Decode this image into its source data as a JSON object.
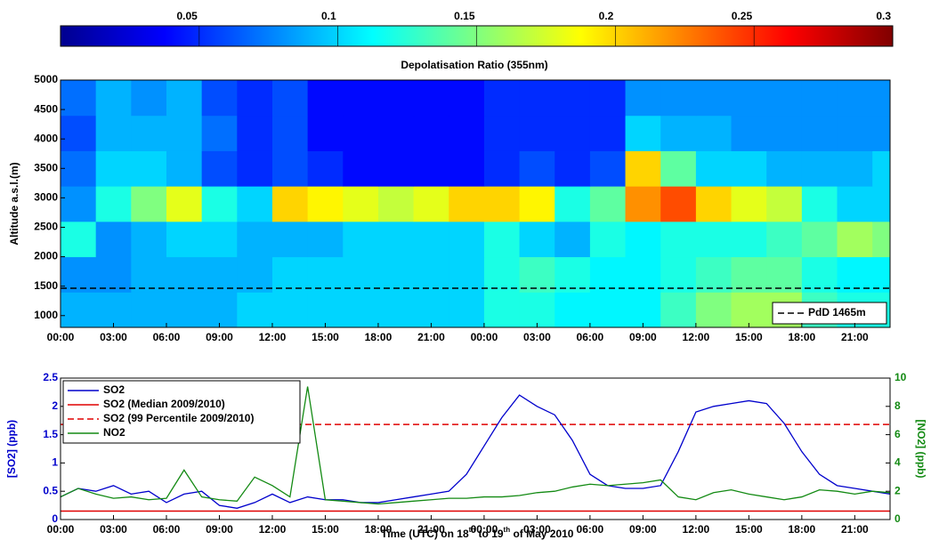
{
  "chart_data": [
    {
      "type": "heatmap",
      "title": "Depolatisation Ratio (355nm)",
      "ylabel": "Altitude a.s.l.(m)",
      "colormap": "jet",
      "colorbar": {
        "lim": [
          0,
          0.3
        ],
        "ticks": [
          0.05,
          0.1,
          0.15,
          0.2,
          0.25,
          0.3
        ]
      },
      "xlim": [
        0,
        47
      ],
      "xticks": [
        {
          "value": 0,
          "label": "00:00"
        },
        {
          "value": 3,
          "label": "03:00"
        },
        {
          "value": 6,
          "label": "06:00"
        },
        {
          "value": 9,
          "label": "09:00"
        },
        {
          "value": 12,
          "label": "12:00"
        },
        {
          "value": 15,
          "label": "15:00"
        },
        {
          "value": 18,
          "label": "18:00"
        },
        {
          "value": 21,
          "label": "21:00"
        },
        {
          "value": 24,
          "label": "00:00"
        },
        {
          "value": 27,
          "label": "03:00"
        },
        {
          "value": 30,
          "label": "06:00"
        },
        {
          "value": 33,
          "label": "09:00"
        },
        {
          "value": 36,
          "label": "12:00"
        },
        {
          "value": 39,
          "label": "15:00"
        },
        {
          "value": 42,
          "label": "18:00"
        },
        {
          "value": 45,
          "label": "21:00"
        }
      ],
      "ylim": [
        800,
        5000
      ],
      "yticks": [
        1000,
        1500,
        2000,
        2500,
        3000,
        3500,
        4000,
        4500,
        5000
      ],
      "x_edges": [
        0,
        2,
        4,
        6,
        8,
        10,
        12,
        14,
        16,
        18,
        20,
        22,
        24,
        26,
        28,
        30,
        32,
        34,
        36,
        38,
        40,
        42,
        44,
        46,
        47
      ],
      "y_edges": [
        800,
        1400,
        2000,
        2600,
        3200,
        3800,
        4400,
        5000
      ],
      "values": [
        [
          0.09,
          0.09,
          0.09,
          0.09,
          0.09,
          0.1,
          0.1,
          0.1,
          0.1,
          0.1,
          0.1,
          0.1,
          0.12,
          0.12,
          0.11,
          0.11,
          0.11,
          0.13,
          0.15,
          0.16,
          0.16,
          0.13,
          0.12,
          0.12
        ],
        [
          0.08,
          0.08,
          0.09,
          0.09,
          0.09,
          0.09,
          0.1,
          0.1,
          0.1,
          0.1,
          0.1,
          0.1,
          0.12,
          0.13,
          0.12,
          0.11,
          0.11,
          0.12,
          0.13,
          0.14,
          0.14,
          0.12,
          0.11,
          0.11
        ],
        [
          0.12,
          0.08,
          0.09,
          0.1,
          0.1,
          0.09,
          0.09,
          0.09,
          0.1,
          0.1,
          0.1,
          0.1,
          0.12,
          0.1,
          0.09,
          0.12,
          0.11,
          0.12,
          0.12,
          0.12,
          0.13,
          0.14,
          0.16,
          0.15
        ],
        [
          0.08,
          0.12,
          0.15,
          0.18,
          0.12,
          0.1,
          0.2,
          0.19,
          0.18,
          0.17,
          0.18,
          0.2,
          0.2,
          0.19,
          0.12,
          0.14,
          0.22,
          0.24,
          0.2,
          0.18,
          0.17,
          0.12,
          0.1,
          0.1
        ],
        [
          0.07,
          0.1,
          0.1,
          0.09,
          0.06,
          0.05,
          0.06,
          0.05,
          0.04,
          0.04,
          0.04,
          0.04,
          0.05,
          0.06,
          0.05,
          0.06,
          0.2,
          0.14,
          0.1,
          0.1,
          0.09,
          0.09,
          0.09,
          0.1
        ],
        [
          0.06,
          0.09,
          0.09,
          0.09,
          0.07,
          0.05,
          0.06,
          0.04,
          0.04,
          0.04,
          0.04,
          0.04,
          0.05,
          0.05,
          0.05,
          0.05,
          0.1,
          0.09,
          0.09,
          0.08,
          0.08,
          0.08,
          0.08,
          0.08
        ],
        [
          0.07,
          0.09,
          0.08,
          0.09,
          0.06,
          0.05,
          0.06,
          0.04,
          0.04,
          0.04,
          0.04,
          0.04,
          0.05,
          0.05,
          0.05,
          0.05,
          0.08,
          0.08,
          0.08,
          0.08,
          0.08,
          0.08,
          0.08,
          0.08
        ]
      ],
      "reference_lines": [
        {
          "name": "PdD 1465m",
          "value": 1465,
          "color": "#000000",
          "style": "dashed"
        }
      ],
      "legend": "lower right"
    },
    {
      "type": "line",
      "xlabel": [
        "Time (UTC) on 18",
        "th",
        " to 19",
        "th",
        " of May 2010"
      ],
      "ylabel": "[SO2] (ppb)",
      "y2label": "[NO2] (ppb)",
      "xlim": [
        0,
        47
      ],
      "xticks": [
        {
          "value": 0,
          "label": "00:00"
        },
        {
          "value": 3,
          "label": "03:00"
        },
        {
          "value": 6,
          "label": "06:00"
        },
        {
          "value": 9,
          "label": "09:00"
        },
        {
          "value": 12,
          "label": "12:00"
        },
        {
          "value": 15,
          "label": "15:00"
        },
        {
          "value": 18,
          "label": "18:00"
        },
        {
          "value": 21,
          "label": "21:00"
        },
        {
          "value": 24,
          "label": "00:00"
        },
        {
          "value": 27,
          "label": "03:00"
        },
        {
          "value": 30,
          "label": "06:00"
        },
        {
          "value": 33,
          "label": "09:00"
        },
        {
          "value": 36,
          "label": "12:00"
        },
        {
          "value": 39,
          "label": "15:00"
        },
        {
          "value": 42,
          "label": "18:00"
        },
        {
          "value": 45,
          "label": "21:00"
        }
      ],
      "ylim": [
        0,
        2.5
      ],
      "yticks": [
        0,
        0.5,
        1,
        1.5,
        2,
        2.5
      ],
      "y2lim": [
        0,
        10
      ],
      "y2ticks": [
        0,
        2,
        4,
        6,
        8,
        10
      ],
      "x": [
        0,
        1,
        2,
        3,
        4,
        5,
        6,
        7,
        8,
        9,
        10,
        11,
        12,
        13,
        14,
        15,
        16,
        17,
        18,
        19,
        20,
        21,
        22,
        23,
        24,
        25,
        26,
        27,
        28,
        29,
        30,
        31,
        32,
        33,
        34,
        35,
        36,
        37,
        38,
        39,
        40,
        41,
        42,
        43,
        44,
        45,
        46,
        47
      ],
      "series": [
        {
          "name": "SO2",
          "color": "#0000cc",
          "axis": "y",
          "values": [
            0.4,
            0.55,
            0.5,
            0.6,
            0.45,
            0.5,
            0.3,
            0.45,
            0.5,
            0.25,
            0.2,
            0.3,
            0.45,
            0.3,
            0.4,
            0.35,
            0.35,
            0.3,
            0.3,
            0.35,
            0.4,
            0.45,
            0.5,
            0.8,
            1.3,
            1.8,
            2.2,
            2.0,
            1.85,
            1.4,
            0.8,
            0.6,
            0.55,
            0.55,
            0.6,
            1.2,
            1.9,
            2.0,
            2.05,
            2.1,
            2.05,
            1.7,
            1.2,
            0.8,
            0.6,
            0.55,
            0.5,
            0.45
          ]
        },
        {
          "name": "NO2",
          "color": "#138a13",
          "axis": "y2",
          "values": [
            1.6,
            2.2,
            1.8,
            1.5,
            1.6,
            1.4,
            1.5,
            3.5,
            1.6,
            1.4,
            1.3,
            3,
            2.4,
            1.6,
            9.4,
            1.4,
            1.3,
            1.2,
            1.1,
            1.2,
            1.3,
            1.4,
            1.5,
            1.5,
            1.6,
            1.6,
            1.7,
            1.9,
            2.0,
            2.3,
            2.5,
            2.4,
            2.5,
            2.6,
            2.8,
            1.6,
            1.4,
            1.9,
            2.1,
            1.8,
            1.6,
            1.4,
            1.6,
            2.1,
            2.0,
            1.8,
            2.0,
            1.9
          ]
        }
      ],
      "reference_lines": [
        {
          "name": "SO2 (Median 2009/2010)",
          "value": 0.15,
          "color": "#e00000",
          "style": "solid"
        },
        {
          "name": "SO2 (99 Percentile 2009/2010)",
          "value": 1.68,
          "color": "#e00000",
          "style": "dashed"
        }
      ],
      "legend": "upper left"
    }
  ]
}
